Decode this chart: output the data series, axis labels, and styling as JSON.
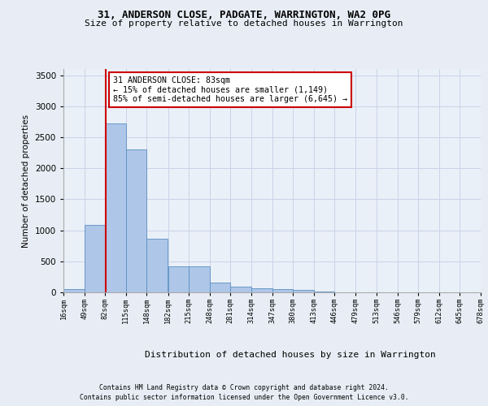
{
  "title1": "31, ANDERSON CLOSE, PADGATE, WARRINGTON, WA2 0PG",
  "title2": "Size of property relative to detached houses in Warrington",
  "xlabel": "Distribution of detached houses by size in Warrington",
  "ylabel": "Number of detached properties",
  "footnote1": "Contains HM Land Registry data © Crown copyright and database right 2024.",
  "footnote2": "Contains public sector information licensed under the Open Government Licence v3.0.",
  "annotation_line1": "31 ANDERSON CLOSE: 83sqm",
  "annotation_line2": "← 15% of detached houses are smaller (1,149)",
  "annotation_line3": "85% of semi-detached houses are larger (6,645) →",
  "bar_left_edges": [
    16,
    49,
    82,
    115,
    148,
    182,
    215,
    248,
    281,
    314,
    347,
    380,
    413,
    446,
    479,
    513,
    546,
    579,
    612,
    645
  ],
  "bar_widths": [
    33,
    33,
    33,
    33,
    33,
    33,
    33,
    33,
    33,
    33,
    33,
    33,
    33,
    33,
    33,
    33,
    33,
    33,
    33,
    33
  ],
  "bar_heights": [
    55,
    1090,
    2720,
    2300,
    870,
    420,
    420,
    155,
    90,
    60,
    50,
    35,
    10,
    5,
    5,
    5,
    5,
    5,
    5,
    5
  ],
  "bar_color": "#aec6e8",
  "bar_edge_color": "#5a8fc2",
  "vline_x": 83,
  "vline_color": "#cc0000",
  "ylim": [
    0,
    3600
  ],
  "xlim": [
    16,
    678
  ],
  "tick_labels": [
    "16sqm",
    "49sqm",
    "82sqm",
    "115sqm",
    "148sqm",
    "182sqm",
    "215sqm",
    "248sqm",
    "281sqm",
    "314sqm",
    "347sqm",
    "380sqm",
    "413sqm",
    "446sqm",
    "479sqm",
    "513sqm",
    "546sqm",
    "579sqm",
    "612sqm",
    "645sqm",
    "678sqm"
  ],
  "tick_positions": [
    16,
    49,
    82,
    115,
    148,
    182,
    215,
    248,
    281,
    314,
    347,
    380,
    413,
    446,
    479,
    513,
    546,
    579,
    612,
    645,
    678
  ],
  "ytick_positions": [
    0,
    500,
    1000,
    1500,
    2000,
    2500,
    3000,
    3500
  ],
  "grid_color": "#c8d4e8",
  "background_color": "#e8edf5",
  "plot_bg_color": "#eaf0f8"
}
